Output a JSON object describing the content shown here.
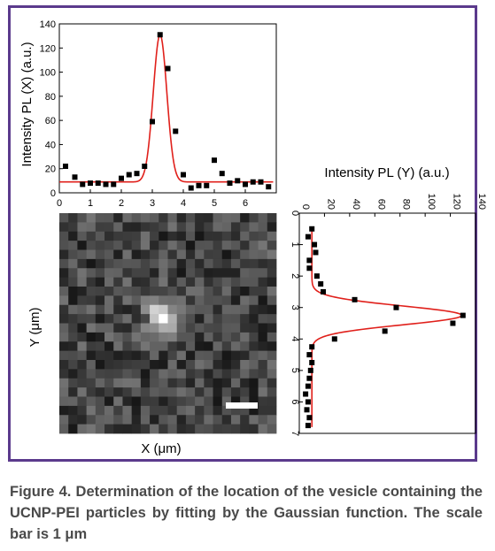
{
  "caption": "Figure 4. Determination of the location of the vesicle containing the UCNP-PEI particles by fitting by the Gaussian function. The scale bar is 1 μm",
  "colors": {
    "frame": "#5b3a8c",
    "fit_curve": "#e0201b",
    "points": "#000000",
    "caption": "#4a4a4a"
  },
  "chart_data": [
    {
      "type": "scatter",
      "ylabel": "Intensity PL (X) (a.u.)",
      "xlim": [
        0,
        7
      ],
      "ylim": [
        0,
        140
      ],
      "x_ticks": [
        0,
        1,
        2,
        3,
        4,
        5,
        6
      ],
      "y_ticks": [
        0,
        20,
        40,
        60,
        80,
        100,
        120,
        140
      ],
      "series": [
        {
          "x": [
            0.2,
            0.5,
            0.75,
            1.0,
            1.25,
            1.5,
            1.75,
            2.0,
            2.25,
            2.5,
            2.75,
            3.0,
            3.25,
            3.5,
            3.75,
            4.0,
            4.25,
            4.5,
            4.75,
            5.0,
            5.25,
            5.5,
            5.75,
            6.0,
            6.25,
            6.5,
            6.75
          ],
          "y": [
            22,
            13,
            7,
            8,
            8,
            7,
            7,
            12,
            15,
            16,
            22,
            59,
            131,
            103,
            51,
            15,
            4,
            6,
            6,
            27,
            16,
            8,
            10,
            7,
            9,
            9,
            5
          ]
        }
      ],
      "fit": {
        "model": "gaussian",
        "baseline": 9,
        "amplitude": 122,
        "center": 3.25,
        "sigma": 0.22
      }
    },
    {
      "type": "heatmap",
      "xlabel": "X (μm)",
      "ylabel": "Y (μm)",
      "grid": "24x24 pixels",
      "scale_bar": "1 μm",
      "bright_spot": {
        "x": 3.3,
        "y": 3.3
      }
    },
    {
      "type": "scatter",
      "title": "Intensity PL (Y) (a.u.)",
      "xlim": [
        0,
        140
      ],
      "ylim": [
        0,
        7
      ],
      "x_ticks": [
        0,
        20,
        40,
        60,
        80,
        100,
        120,
        140
      ],
      "y_ticks": [
        0,
        1,
        2,
        3,
        4,
        5,
        6,
        7
      ],
      "series": [
        {
          "y": [
            0.5,
            0.75,
            1.0,
            1.25,
            1.5,
            1.75,
            2.0,
            2.25,
            2.5,
            2.75,
            3.0,
            3.25,
            3.5,
            3.75,
            4.0,
            4.25,
            4.5,
            4.75,
            5.0,
            5.25,
            5.5,
            5.75,
            6.0,
            6.25,
            6.5,
            6.75
          ],
          "x": [
            10,
            7,
            12,
            13,
            8,
            8,
            14,
            17,
            19,
            44,
            77,
            130,
            122,
            68,
            28,
            10,
            8,
            10,
            9,
            8,
            7,
            5,
            7,
            6,
            8,
            7
          ]
        }
      ],
      "fit": {
        "model": "gaussian",
        "baseline": 10,
        "amplitude": 119,
        "center": 3.25,
        "sigma": 0.3
      }
    }
  ]
}
